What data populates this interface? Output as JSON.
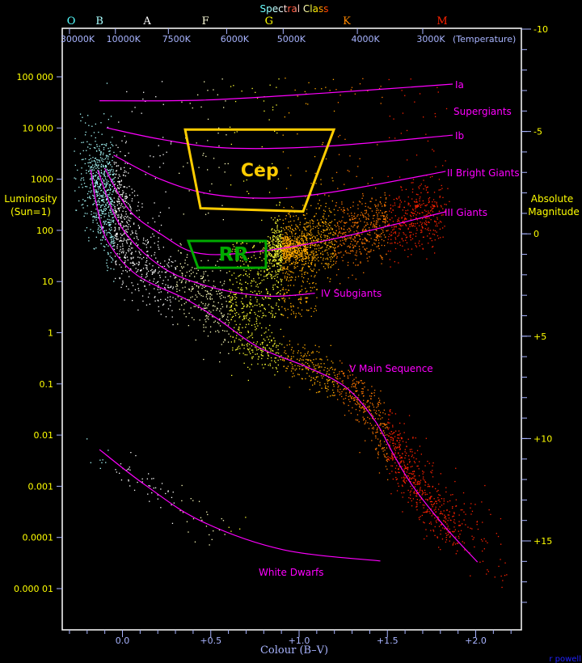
{
  "chart_data": {
    "type": "scatter",
    "title": "Spectral Class",
    "xlabel": "Colour (B–V)",
    "ylabel": "Luminosity (Sun=1)",
    "y2label": "Absolute Magnitude",
    "top_axis_note": "(Temperature)",
    "xlim": [
      -0.34,
      2.26
    ],
    "ylim": [
      2.5e-06,
      890000
    ],
    "yscale": "log",
    "grid": false,
    "x_ticks": [
      {
        "v": 0,
        "label": "0.0"
      },
      {
        "v": 0.5,
        "label": "+0.5"
      },
      {
        "v": 1,
        "label": "+1.0"
      },
      {
        "v": 1.5,
        "label": "+1.5"
      },
      {
        "v": 2,
        "label": "+2.0"
      }
    ],
    "y_ticks": [
      {
        "v": 100000,
        "label": "100 000"
      },
      {
        "v": 10000,
        "label": "10 000"
      },
      {
        "v": 1000,
        "label": "1000"
      },
      {
        "v": 100,
        "label": "100"
      },
      {
        "v": 10,
        "label": "10"
      },
      {
        "v": 1,
        "label": "1"
      },
      {
        "v": 0.1,
        "label": "0.1"
      },
      {
        "v": 0.01,
        "label": "0.01"
      },
      {
        "v": 0.001,
        "label": "0.001"
      },
      {
        "v": 0.0001,
        "label": "0.0001"
      },
      {
        "v": 1e-05,
        "label": "0.000 01"
      }
    ],
    "magnitude_ticks": [
      {
        "v": -10,
        "label": "-10"
      },
      {
        "v": -5,
        "label": "-5"
      },
      {
        "v": 0,
        "label": "0"
      },
      {
        "v": 5,
        "label": "+5"
      },
      {
        "v": 10,
        "label": "+10"
      },
      {
        "v": 15,
        "label": "+15"
      }
    ],
    "temperature_ticks": [
      {
        "bv": -0.3,
        "label": "30000K"
      },
      {
        "bv": -0.04,
        "label": "10000K"
      },
      {
        "bv": 0.26,
        "label": "7500K"
      },
      {
        "bv": 0.59,
        "label": "6000K"
      },
      {
        "bv": 0.91,
        "label": "5000K"
      },
      {
        "bv": 1.33,
        "label": "4000K"
      },
      {
        "bv": 1.7,
        "label": "3000K"
      }
    ],
    "spectral_classes": [
      {
        "bv": -0.29,
        "label": "O",
        "color": "#55ffff"
      },
      {
        "bv": -0.13,
        "label": "B",
        "color": "#aaffff"
      },
      {
        "bv": 0.14,
        "label": "A",
        "color": "#ffffff"
      },
      {
        "bv": 0.47,
        "label": "F",
        "color": "#ffffdd"
      },
      {
        "bv": 0.83,
        "label": "G",
        "color": "#ffff00"
      },
      {
        "bv": 1.27,
        "label": "K",
        "color": "#ff8800"
      },
      {
        "bv": 1.81,
        "label": "M",
        "color": "#ff2200"
      }
    ],
    "luminosity_classes": [
      {
        "label": "Ia",
        "points": [
          [
            -0.13,
            34000
          ],
          [
            0.45,
            35000
          ],
          [
            1.14,
            48000
          ],
          [
            1.87,
            72000
          ]
        ]
      },
      {
        "label": "Ib",
        "points": [
          [
            -0.09,
            10100
          ],
          [
            0.22,
            6000
          ],
          [
            0.59,
            4070
          ],
          [
            1.14,
            4370
          ],
          [
            1.87,
            7240
          ]
        ]
      },
      {
        "label": "II Bright Giants",
        "points": [
          [
            -0.05,
            2950
          ],
          [
            0.22,
            985
          ],
          [
            0.5,
            510
          ],
          [
            0.86,
            427
          ],
          [
            1.23,
            590
          ],
          [
            1.83,
            1420
          ]
        ]
      },
      {
        "label": "III    Giants",
        "points": [
          [
            -0.1,
            1620
          ],
          [
            0.04,
            245
          ],
          [
            0.22,
            83
          ],
          [
            0.41,
            37
          ],
          [
            0.68,
            36
          ],
          [
            1.14,
            62
          ],
          [
            1.83,
            230
          ]
        ]
      },
      {
        "label": "IV  Subgiants",
        "points": [
          [
            -0.14,
            1490
          ],
          [
            -0.01,
            120
          ],
          [
            0.22,
            19.5
          ],
          [
            0.5,
            7.8
          ],
          [
            0.82,
            5.2
          ],
          [
            1.09,
            5.9
          ]
        ]
      },
      {
        "label": "V  Main Sequence",
        "points": [
          [
            -0.18,
            1520
          ],
          [
            -0.14,
            245
          ],
          [
            -0.08,
            58
          ],
          [
            0.08,
            13.5
          ],
          [
            0.36,
            4.5
          ],
          [
            0.54,
            1.85
          ],
          [
            0.77,
            0.52
          ],
          [
            1.05,
            0.21
          ],
          [
            1.27,
            0.083
          ],
          [
            1.43,
            0.019
          ],
          [
            1.53,
            0.0045
          ],
          [
            1.64,
            0.00105
          ],
          [
            1.82,
            0.00017
          ],
          [
            2.01,
            3.3e-05
          ]
        ]
      },
      {
        "label": "White Dwarfs",
        "points": [
          [
            -0.13,
            0.0052
          ],
          [
            0.13,
            0.00105
          ],
          [
            0.45,
            0.000205
          ],
          [
            0.91,
            5.75e-05
          ],
          [
            1.46,
            3.47e-05
          ]
        ]
      }
    ],
    "extra_label": "Supergiants",
    "regions": [
      {
        "label": "Cep",
        "color": "#ffcc00",
        "points": [
          [
            0.355,
            9300
          ],
          [
            1.197,
            9300
          ],
          [
            1.023,
            234
          ],
          [
            0.442,
            270
          ]
        ]
      },
      {
        "label": "RR",
        "color": "#00aa00",
        "points": [
          [
            0.373,
            62
          ],
          [
            0.812,
            62
          ],
          [
            0.812,
            18.6
          ],
          [
            0.428,
            18.6
          ]
        ]
      }
    ],
    "colors": {
      "curve": "#ff00ff",
      "frame": "#ffffff",
      "tick": "#a8b4ff",
      "axis_text": "#ffff00"
    }
  },
  "credit": "r powell"
}
